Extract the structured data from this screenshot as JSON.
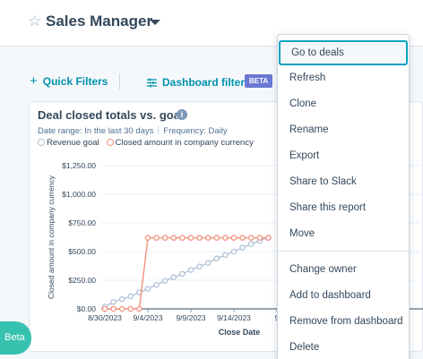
{
  "header": {
    "title": "Sales Manager"
  },
  "filters": {
    "quick_filters": "Quick Filters",
    "dashboard_filters": "Dashboard filters",
    "beta_badge": "BETA"
  },
  "report": {
    "title": "Deal closed totals vs. goal",
    "date_range": "Date range: In the last 30 days",
    "frequency": "Frequency: Daily",
    "legend": [
      "Revenue goal",
      "Closed amount in company currency"
    ]
  },
  "chart_data": {
    "type": "line",
    "title": "Deal closed totals vs. goal",
    "xlabel": "Close Date",
    "ylabel": "Closed amount in company currency",
    "yticks": [
      "$0.00",
      "$250.00",
      "$500.00",
      "$750.00",
      "$1,000.00",
      "$1,250.00"
    ],
    "xticks": [
      "8/30/2023",
      "9/4/2023",
      "9/9/2023",
      "9/14/2023",
      "9"
    ],
    "ylim": [
      0,
      1250
    ],
    "grid": true,
    "x": [
      "8/30",
      "8/31",
      "9/1",
      "9/2",
      "9/3",
      "9/4",
      "9/5",
      "9/6",
      "9/7",
      "9/8",
      "9/9",
      "9/10",
      "9/11",
      "9/12",
      "9/13",
      "9/14",
      "9/15",
      "9/16",
      "9/17",
      "9/18"
    ],
    "series": [
      {
        "name": "Revenue goal",
        "color": "#b0c1d8",
        "values": [
          20,
          60,
          85,
          110,
          145,
          175,
          210,
          245,
          275,
          305,
          340,
          370,
          400,
          440,
          470,
          500,
          535,
          565,
          595,
          620
        ]
      },
      {
        "name": "Closed amount in company currency",
        "color": "#f2927f",
        "values": [
          0,
          0,
          0,
          0,
          0,
          620,
          620,
          620,
          620,
          620,
          620,
          620,
          620,
          620,
          620,
          620,
          620,
          620,
          620,
          620
        ]
      }
    ]
  },
  "menu": {
    "items": [
      "Go to deals",
      "Refresh",
      "Clone",
      "Rename",
      "Export",
      "Share to Slack",
      "Share this report",
      "Move",
      "Change owner",
      "Add to dashboard",
      "Remove from dashboard",
      "Delete"
    ]
  },
  "beta_button": "Beta"
}
